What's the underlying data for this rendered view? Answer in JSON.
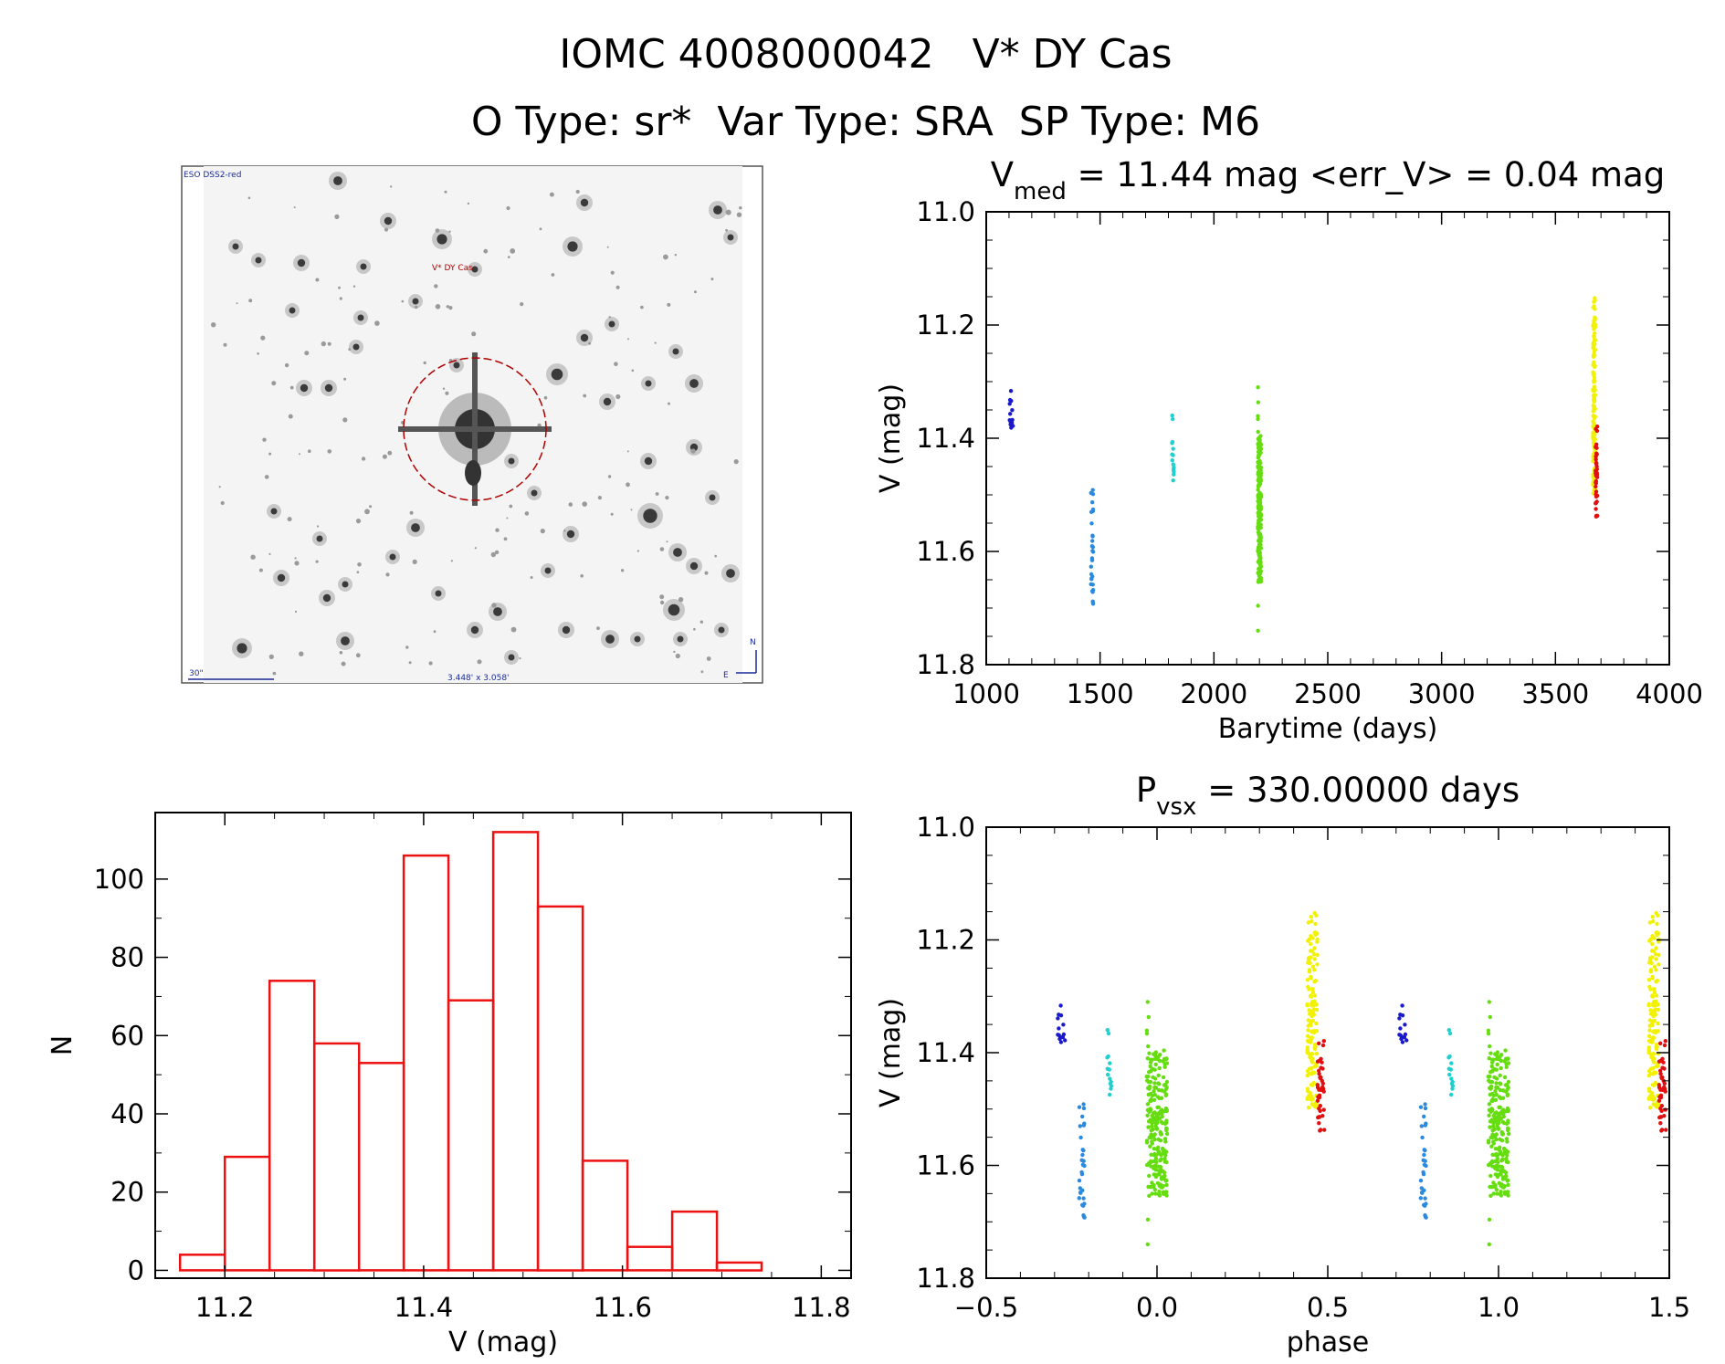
{
  "header": {
    "title": "IOMC 4008000042   V* DY Cas",
    "subtitle": "O Type: sr*  Var Type: SRA  SP Type: M6"
  },
  "image_panel": {
    "survey_label": "ESO DSS2-red",
    "target_label": "V* DY Cas",
    "scale_label": "30\"",
    "fov_label": "3.448' x 3.058'",
    "north_label": "N",
    "east_label": "E",
    "marker_color": "#b00000"
  },
  "chart_data": [
    {
      "id": "lightcurve",
      "type": "scatter",
      "title_main": "V",
      "title_sub": "med",
      "title_rest": " = 11.44 mag <err_V> = 0.04 mag",
      "xlabel": "Barytime (days)",
      "ylabel": "V (mag)",
      "xlim": [
        1000,
        4000
      ],
      "ylim": [
        11.8,
        11.0
      ],
      "xticks": [
        1000,
        1500,
        2000,
        2500,
        3000,
        3500,
        4000
      ],
      "yticks": [
        11.0,
        11.2,
        11.4,
        11.6,
        11.8
      ],
      "series": [
        {
          "color": "#1a1acc",
          "x_center": 1110,
          "x_spread": 8,
          "y_min": 11.31,
          "y_max": 11.39,
          "n": 14
        },
        {
          "color": "#2a8ae0",
          "x_center": 1465,
          "x_spread": 5,
          "y_min": 11.48,
          "y_max": 11.71,
          "n": 30
        },
        {
          "color": "#20d0d0",
          "x_center": 1820,
          "x_spread": 4,
          "y_min": 11.35,
          "y_max": 11.48,
          "n": 14
        },
        {
          "color": "#66dd11",
          "x_center": 2200,
          "x_spread": 7,
          "y_min": 11.31,
          "y_max": 11.74,
          "n": 240
        },
        {
          "color": "#f2f200",
          "x_center": 3670,
          "x_spread": 5,
          "y_min": 11.15,
          "y_max": 11.5,
          "n": 140
        },
        {
          "color": "#e01010",
          "x_center": 3680,
          "x_spread": 4,
          "y_min": 11.37,
          "y_max": 11.54,
          "n": 40
        }
      ]
    },
    {
      "id": "histogram",
      "type": "bar",
      "xlabel": "V (mag)",
      "ylabel": "N",
      "xlim": [
        11.13,
        11.83
      ],
      "ylim": [
        -2,
        117
      ],
      "xticks": [
        11.2,
        11.4,
        11.6,
        11.8
      ],
      "yticks": [
        0,
        20,
        40,
        60,
        80,
        100
      ],
      "bin_edges": [
        11.155,
        11.2,
        11.245,
        11.29,
        11.335,
        11.38,
        11.425,
        11.47,
        11.515,
        11.56,
        11.605,
        11.65,
        11.695,
        11.74
      ],
      "values": [
        4,
        29,
        74,
        58,
        53,
        106,
        69,
        112,
        93,
        28,
        6,
        15,
        2
      ],
      "color": "#ee1111"
    },
    {
      "id": "phased",
      "type": "scatter",
      "title_main": "P",
      "title_sub": "vsx",
      "title_rest": " = 330.00000 days",
      "xlabel": "phase",
      "ylabel": "V (mag)",
      "xlim": [
        -0.5,
        1.5
      ],
      "ylim": [
        11.8,
        11.0
      ],
      "xticks": [
        -0.5,
        0.0,
        0.5,
        1.0,
        1.5
      ],
      "yticks": [
        11.0,
        11.2,
        11.4,
        11.6,
        11.8
      ],
      "series": [
        {
          "color": "#1a1acc",
          "x_center": -0.28,
          "x_spread": 0.012,
          "y_min": 11.31,
          "y_max": 11.39,
          "n": 14
        },
        {
          "color": "#2a8ae0",
          "x_center": -0.22,
          "x_spread": 0.008,
          "y_min": 11.48,
          "y_max": 11.71,
          "n": 30
        },
        {
          "color": "#20d0d0",
          "x_center": -0.14,
          "x_spread": 0.006,
          "y_min": 11.35,
          "y_max": 11.48,
          "n": 14
        },
        {
          "color": "#66dd11",
          "x_center": 0.0,
          "x_spread": 0.03,
          "y_min": 11.31,
          "y_max": 11.74,
          "n": 240
        },
        {
          "color": "#f2f200",
          "x_center": 0.455,
          "x_spread": 0.015,
          "y_min": 11.15,
          "y_max": 11.5,
          "n": 140
        },
        {
          "color": "#e01010",
          "x_center": 0.48,
          "x_spread": 0.01,
          "y_min": 11.37,
          "y_max": 11.54,
          "n": 40
        }
      ]
    }
  ]
}
